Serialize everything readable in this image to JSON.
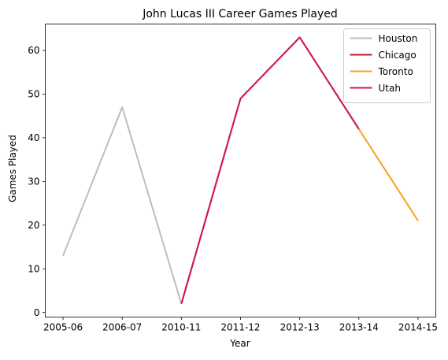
{
  "chart_data": {
    "type": "line",
    "title": "John Lucas III Career Games Played",
    "xlabel": "Year",
    "ylabel": "Games Played",
    "categories": [
      "2005-06",
      "2006-07",
      "2010-11",
      "2011-12",
      "2012-13",
      "2013-14",
      "2014-15"
    ],
    "ylim": [
      -1.05,
      66.05
    ],
    "yticks": [
      0,
      10,
      20,
      30,
      40,
      50,
      60
    ],
    "grid": false,
    "legend_position": "top-right",
    "series": [
      {
        "name": "Houston",
        "color": "#bdbdbd",
        "points": [
          [
            0,
            13
          ],
          [
            1,
            47
          ],
          [
            2,
            2
          ]
        ]
      },
      {
        "name": "Chicago",
        "color": "#c8102e",
        "points": [
          [
            2,
            2
          ],
          [
            3,
            49
          ],
          [
            4,
            63
          ],
          [
            5,
            42
          ]
        ]
      },
      {
        "name": "Toronto",
        "color": "#f6a21d",
        "points": [
          [
            5,
            42
          ],
          [
            6,
            21
          ]
        ]
      },
      {
        "name": "Utah",
        "color": "#ce1a4f",
        "points": [
          [
            2,
            2
          ],
          [
            3,
            49
          ],
          [
            4,
            63
          ],
          [
            5,
            42
          ]
        ]
      }
    ]
  }
}
